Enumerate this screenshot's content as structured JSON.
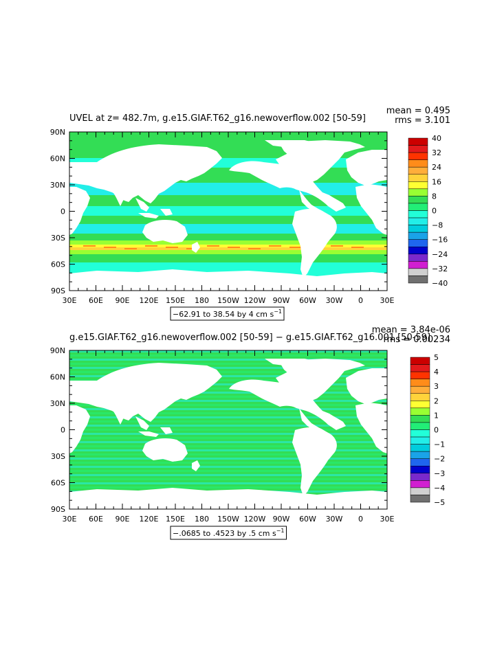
{
  "panels": [
    {
      "id": "top",
      "title": "UVEL at z= 482.7m, g.e15.GIAF.T62_g16.newoverflow.002 [50-59]",
      "mean": "mean = 0.495",
      "rms": "rms = 3.101",
      "range_text": "−62.91 to 38.54 by 4 cm s",
      "range_sup": "−1",
      "lat_labels": [
        "90N",
        "60N",
        "30N",
        "0",
        "30S",
        "60S",
        "90S"
      ],
      "lon_labels": [
        "30E",
        "60E",
        "90E",
        "120E",
        "150E",
        "180",
        "150W",
        "120W",
        "90W",
        "60W",
        "30W",
        "0",
        "30E"
      ],
      "colorbar": {
        "labels": [
          "40",
          "32",
          "24",
          "16",
          "8",
          "0",
          "−8",
          "−16",
          "−24",
          "−32",
          "−40"
        ],
        "colors": [
          "#cc0000",
          "#e31a1c",
          "#ff3300",
          "#ff8c1a",
          "#ffae3b",
          "#ffd33b",
          "#ffff33",
          "#99ff33",
          "#33dd55",
          "#22ee77",
          "#22ffd8",
          "#22eee8",
          "#00ccdd",
          "#1aa3e8",
          "#1f66ee",
          "#0000cc",
          "#7a29cc",
          "#d11fd1",
          "#d0d0d0",
          "#707070"
        ]
      }
    },
    {
      "id": "bottom",
      "title": "g.e15.GIAF.T62_g16.newoverflow.002 [50-59] − g.e15.GIAF.T62_g16.001 [50-59]",
      "mean": "mean = 3.84e-06",
      "rms": "rms = 0.00234",
      "range_text": "−.0685 to .4523 by .5 cm s",
      "range_sup": "−1",
      "lat_labels": [
        "90N",
        "60N",
        "30N",
        "0",
        "30S",
        "60S",
        "90S"
      ],
      "lon_labels": [
        "30E",
        "60E",
        "90E",
        "120E",
        "150E",
        "180",
        "150W",
        "120W",
        "90W",
        "60W",
        "30W",
        "0",
        "30E"
      ],
      "colorbar": {
        "labels": [
          "5",
          "4",
          "3",
          "2",
          "1",
          "0",
          "−1",
          "−2",
          "−3",
          "−4",
          "−5"
        ],
        "colors": [
          "#cc0000",
          "#e31a1c",
          "#ff3300",
          "#ff8c1a",
          "#ffae3b",
          "#ffd33b",
          "#ffff33",
          "#99ff33",
          "#33dd55",
          "#22ee77",
          "#22ffd8",
          "#22eee8",
          "#00ccdd",
          "#1aa3e8",
          "#1f66ee",
          "#0000cc",
          "#7a29cc",
          "#d11fd1",
          "#d0d0d0",
          "#707070"
        ]
      }
    }
  ]
}
